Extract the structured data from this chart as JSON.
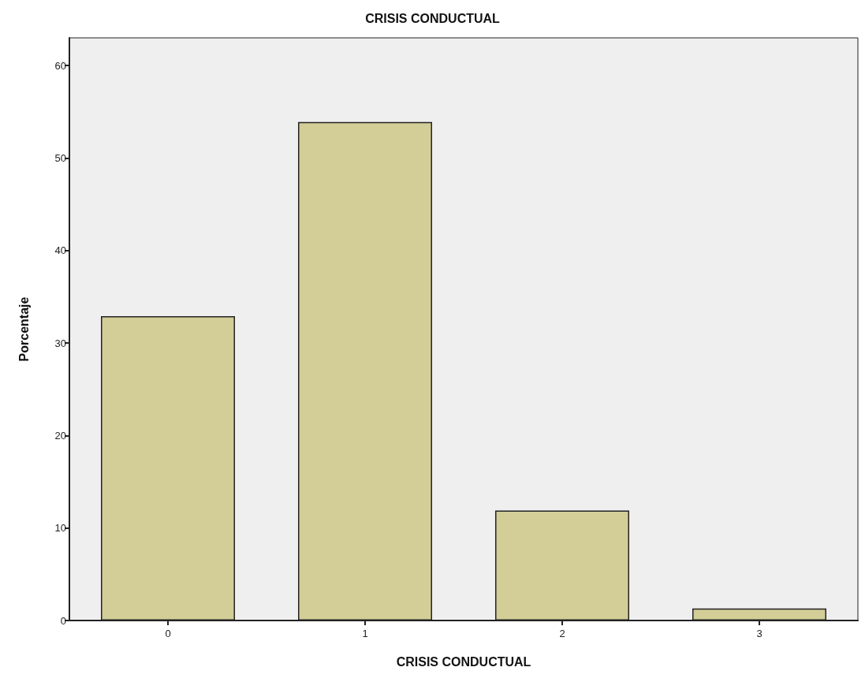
{
  "chart_data": {
    "type": "bar",
    "title": "CRISIS CONDUCTUAL",
    "xlabel": "CRISIS CONDUCTUAL",
    "ylabel": "Porcentaje",
    "categories": [
      "0",
      "1",
      "2",
      "3"
    ],
    "values": [
      32.9,
      53.9,
      11.9,
      1.3
    ],
    "color": "#d3ce97",
    "ylim": [
      0,
      63
    ],
    "yticks": [
      0,
      10,
      20,
      30,
      40,
      50,
      60
    ],
    "grid": false
  }
}
